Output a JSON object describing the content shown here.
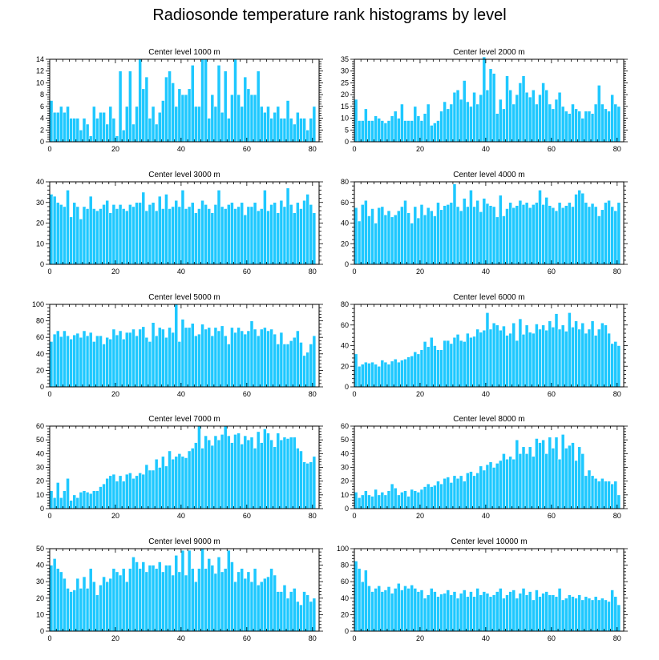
{
  "title": "Radiosonde temperature rank histograms by level",
  "colors": {
    "bar": "#1ec8ff",
    "bar_edge": "#ffffff",
    "axis": "#000000"
  },
  "chart_data": [
    {
      "type": "bar",
      "title": "Center level 1000 m",
      "xlabel": "",
      "ylabel": "",
      "xlim": [
        0,
        82
      ],
      "ylim": [
        0,
        14
      ],
      "xticks": [
        0,
        20,
        40,
        60,
        80
      ],
      "yticks": [
        0,
        2,
        4,
        6,
        8,
        10,
        12,
        14
      ],
      "values": [
        7,
        5,
        5,
        6,
        5,
        6,
        4,
        4,
        4,
        2,
        4,
        3,
        1,
        6,
        4,
        5,
        5,
        3,
        6,
        4,
        1,
        12,
        2,
        6,
        12,
        3,
        6,
        14,
        9,
        11,
        4,
        6,
        3,
        5,
        7,
        11,
        12,
        10,
        6,
        9,
        8,
        8,
        9,
        13,
        6,
        6,
        14,
        14,
        4,
        8,
        6,
        13,
        5,
        12,
        4,
        8,
        14,
        8,
        6,
        11,
        9,
        8,
        8,
        12,
        6,
        5,
        6,
        4,
        5,
        6,
        4,
        4,
        7,
        4,
        3,
        5,
        4,
        4,
        2,
        4,
        6
      ],
      "seed": 1
    },
    {
      "type": "bar",
      "title": "Center level 2000 m",
      "xlabel": "",
      "ylabel": "",
      "xlim": [
        0,
        82
      ],
      "ylim": [
        0,
        35
      ],
      "xticks": [
        0,
        20,
        40,
        60,
        80
      ],
      "yticks": [
        0,
        5,
        10,
        15,
        20,
        25,
        30,
        35
      ],
      "values": [
        18,
        9,
        9,
        14,
        9,
        9,
        11,
        10,
        9,
        8,
        9,
        11,
        13,
        10,
        16,
        9,
        9,
        9,
        15,
        11,
        9,
        12,
        16,
        7,
        8,
        9,
        13,
        17,
        14,
        16,
        21,
        22,
        18,
        26,
        17,
        15,
        21,
        16,
        20,
        36,
        22,
        31,
        29,
        12,
        18,
        14,
        28,
        22,
        16,
        20,
        25,
        28,
        21,
        19,
        22,
        16,
        20,
        25,
        22,
        16,
        14,
        18,
        21,
        15,
        13,
        12,
        16,
        14,
        13,
        10,
        13,
        13,
        12,
        16,
        24,
        16,
        14,
        13,
        20,
        16,
        15
      ],
      "seed": 2
    },
    {
      "type": "bar",
      "title": "Center level 3000 m",
      "xlabel": "",
      "ylabel": "",
      "xlim": [
        0,
        82
      ],
      "ylim": [
        0,
        40
      ],
      "xticks": [
        0,
        20,
        40,
        60,
        80
      ],
      "yticks": [
        0,
        10,
        20,
        30,
        40
      ],
      "values": [
        34,
        33,
        30,
        29,
        28,
        36,
        23,
        30,
        28,
        22,
        28,
        27,
        33,
        27,
        26,
        27,
        29,
        31,
        25,
        29,
        27,
        29,
        27,
        26,
        29,
        28,
        30,
        30,
        35,
        26,
        29,
        30,
        26,
        33,
        27,
        34,
        27,
        28,
        31,
        28,
        36,
        27,
        28,
        30,
        25,
        27,
        31,
        29,
        27,
        25,
        29,
        36,
        28,
        27,
        29,
        30,
        27,
        28,
        30,
        24,
        28,
        28,
        30,
        26,
        27,
        36,
        26,
        29,
        30,
        25,
        31,
        28,
        37,
        29,
        25,
        30,
        27,
        31,
        34,
        29,
        25
      ],
      "seed": 3
    },
    {
      "type": "bar",
      "title": "Center level 4000 m",
      "xlabel": "",
      "ylabel": "",
      "xlim": [
        0,
        82
      ],
      "ylim": [
        0,
        80
      ],
      "xticks": [
        0,
        20,
        40,
        60,
        80
      ],
      "yticks": [
        0,
        20,
        40,
        60,
        80
      ],
      "values": [
        55,
        42,
        58,
        62,
        47,
        54,
        40,
        55,
        56,
        48,
        52,
        46,
        48,
        52,
        56,
        62,
        50,
        40,
        56,
        45,
        58,
        48,
        55,
        52,
        47,
        60,
        53,
        57,
        58,
        60,
        78,
        56,
        52,
        64,
        56,
        72,
        56,
        62,
        51,
        64,
        59,
        57,
        56,
        46,
        67,
        47,
        54,
        60,
        55,
        57,
        62,
        58,
        60,
        55,
        58,
        60,
        72,
        58,
        65,
        57,
        55,
        52,
        60,
        55,
        57,
        60,
        56,
        68,
        72,
        69,
        60,
        56,
        59,
        56,
        47,
        53,
        60,
        62,
        56,
        52,
        60
      ],
      "seed": 4
    },
    {
      "type": "bar",
      "title": "Center level 5000 m",
      "xlabel": "",
      "ylabel": "",
      "xlim": [
        0,
        82
      ],
      "ylim": [
        0,
        100
      ],
      "xticks": [
        0,
        20,
        40,
        60,
        80
      ],
      "yticks": [
        0,
        20,
        40,
        60,
        80,
        100
      ],
      "values": [
        55,
        64,
        68,
        61,
        68,
        62,
        58,
        63,
        65,
        60,
        68,
        62,
        66,
        55,
        62,
        62,
        52,
        60,
        58,
        70,
        63,
        68,
        58,
        66,
        66,
        70,
        62,
        70,
        73,
        60,
        55,
        78,
        62,
        72,
        70,
        60,
        72,
        66,
        100,
        55,
        82,
        72,
        72,
        77,
        62,
        64,
        76,
        70,
        72,
        62,
        72,
        68,
        74,
        62,
        52,
        72,
        66,
        72,
        68,
        64,
        68,
        80,
        70,
        62,
        70,
        72,
        68,
        70,
        64,
        52,
        66,
        52,
        52,
        56,
        60,
        68,
        54,
        38,
        42,
        52,
        62
      ],
      "seed": 5
    },
    {
      "type": "bar",
      "title": "Center level 6000 m",
      "xlabel": "",
      "ylabel": "",
      "xlim": [
        0,
        82
      ],
      "ylim": [
        0,
        80
      ],
      "xticks": [
        0,
        20,
        40,
        60,
        80
      ],
      "yticks": [
        0,
        20,
        40,
        60,
        80
      ],
      "values": [
        32,
        20,
        22,
        24,
        23,
        24,
        22,
        20,
        26,
        24,
        22,
        25,
        27,
        24,
        26,
        27,
        29,
        30,
        34,
        32,
        36,
        44,
        39,
        48,
        40,
        36,
        36,
        45,
        45,
        42,
        48,
        51,
        45,
        44,
        52,
        48,
        49,
        56,
        53,
        55,
        72,
        56,
        62,
        60,
        55,
        59,
        50,
        52,
        62,
        45,
        66,
        51,
        60,
        53,
        52,
        61,
        56,
        60,
        55,
        64,
        58,
        71,
        56,
        60,
        54,
        72,
        58,
        64,
        56,
        62,
        52,
        56,
        64,
        50,
        56,
        62,
        60,
        52,
        42,
        44,
        40
      ],
      "seed": 6
    },
    {
      "type": "bar",
      "title": "Center level 7000 m",
      "xlabel": "",
      "ylabel": "",
      "xlim": [
        0,
        82
      ],
      "ylim": [
        0,
        60
      ],
      "xticks": [
        0,
        20,
        40,
        60,
        80
      ],
      "yticks": [
        0,
        10,
        20,
        30,
        40,
        50,
        60
      ],
      "values": [
        13,
        8,
        19,
        8,
        13,
        22,
        6,
        10,
        8,
        12,
        13,
        12,
        11,
        13,
        13,
        16,
        18,
        22,
        24,
        25,
        20,
        24,
        20,
        25,
        26,
        22,
        24,
        26,
        25,
        32,
        28,
        28,
        36,
        30,
        38,
        31,
        42,
        36,
        38,
        40,
        38,
        37,
        42,
        44,
        48,
        60,
        44,
        53,
        50,
        46,
        53,
        50,
        54,
        60,
        53,
        48,
        54,
        55,
        47,
        53,
        50,
        52,
        44,
        56,
        48,
        58,
        55,
        50,
        45,
        55,
        50,
        52,
        51,
        52,
        52,
        44,
        42,
        34,
        33,
        34,
        38
      ],
      "seed": 7
    },
    {
      "type": "bar",
      "title": "Center level 8000 m",
      "xlabel": "",
      "ylabel": "",
      "xlim": [
        0,
        82
      ],
      "ylim": [
        0,
        60
      ],
      "xticks": [
        0,
        20,
        40,
        60,
        80
      ],
      "yticks": [
        0,
        10,
        20,
        30,
        40,
        50,
        60
      ],
      "values": [
        12,
        8,
        10,
        13,
        10,
        9,
        14,
        10,
        12,
        10,
        13,
        18,
        15,
        10,
        12,
        13,
        9,
        14,
        13,
        12,
        14,
        16,
        18,
        16,
        17,
        20,
        18,
        22,
        23,
        19,
        24,
        22,
        24,
        20,
        26,
        27,
        24,
        26,
        31,
        28,
        32,
        34,
        30,
        33,
        35,
        40,
        36,
        38,
        36,
        50,
        40,
        45,
        40,
        45,
        38,
        51,
        48,
        50,
        40,
        52,
        44,
        52,
        36,
        54,
        44,
        46,
        48,
        35,
        45,
        40,
        24,
        28,
        24,
        22,
        20,
        22,
        20,
        20,
        18,
        20,
        10
      ],
      "seed": 8
    },
    {
      "type": "bar",
      "title": "Center level 9000 m",
      "xlabel": "",
      "ylabel": "",
      "xlim": [
        0,
        82
      ],
      "ylim": [
        0,
        50
      ],
      "xticks": [
        0,
        20,
        40,
        60,
        80
      ],
      "yticks": [
        0,
        10,
        20,
        30,
        40,
        50
      ],
      "values": [
        40,
        44,
        38,
        36,
        32,
        26,
        24,
        25,
        32,
        26,
        33,
        26,
        38,
        30,
        22,
        28,
        33,
        30,
        32,
        38,
        36,
        34,
        38,
        30,
        38,
        45,
        42,
        38,
        42,
        36,
        40,
        40,
        38,
        42,
        36,
        40,
        40,
        34,
        46,
        36,
        49,
        34,
        49,
        38,
        30,
        38,
        50,
        38,
        44,
        40,
        35,
        45,
        36,
        38,
        49,
        42,
        30,
        36,
        38,
        32,
        36,
        30,
        38,
        28,
        30,
        32,
        33,
        38,
        34,
        24,
        24,
        28,
        20,
        24,
        26,
        18,
        16,
        24,
        22,
        18,
        20
      ],
      "seed": 9
    },
    {
      "type": "bar",
      "title": "Center level 10000 m",
      "xlabel": "",
      "ylabel": "",
      "xlim": [
        0,
        82
      ],
      "ylim": [
        0,
        100
      ],
      "xticks": [
        0,
        20,
        40,
        60,
        80
      ],
      "yticks": [
        0,
        20,
        40,
        60,
        80,
        100
      ],
      "values": [
        85,
        76,
        60,
        74,
        55,
        48,
        52,
        55,
        48,
        50,
        54,
        46,
        52,
        58,
        50,
        55,
        52,
        56,
        52,
        48,
        50,
        40,
        44,
        52,
        48,
        42,
        45,
        46,
        50,
        44,
        48,
        40,
        46,
        50,
        42,
        48,
        42,
        52,
        44,
        48,
        46,
        42,
        44,
        48,
        52,
        40,
        44,
        48,
        50,
        40,
        46,
        52,
        44,
        48,
        38,
        50,
        42,
        46,
        48,
        44,
        44,
        42,
        52,
        38,
        40,
        44,
        42,
        40,
        44,
        38,
        42,
        40,
        38,
        42,
        38,
        40,
        38,
        36,
        50,
        42,
        32
      ],
      "seed": 10
    }
  ]
}
